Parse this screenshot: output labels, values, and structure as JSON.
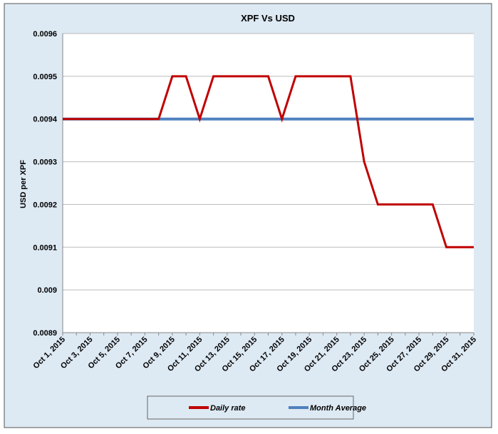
{
  "chart_data": {
    "type": "line",
    "title": "XPF Vs USD",
    "y_label": "USD per XPF",
    "categories": [
      "Oct 1, 2015",
      null,
      "Oct 3, 2015",
      null,
      "Oct 5, 2015",
      null,
      "Oct 7, 2015",
      null,
      "Oct 9, 2015",
      null,
      "Oct 11, 2015",
      null,
      "Oct 13, 2015",
      null,
      "Oct 15, 2015",
      null,
      "Oct 17, 2015",
      null,
      "Oct 19, 2015",
      null,
      "Oct 21, 2015",
      null,
      "Oct 23, 2015",
      null,
      "Oct 25, 2015",
      null,
      "Oct 27, 2015",
      null,
      "Oct 29, 2015",
      null,
      "Oct 31, 2015"
    ],
    "series": [
      {
        "name": "Month Average",
        "color": "#4f81bd",
        "values": [
          0.0094,
          0.0094,
          0.0094,
          0.0094,
          0.0094,
          0.0094,
          0.0094,
          0.0094,
          0.0094,
          0.0094,
          0.0094,
          0.0094,
          0.0094,
          0.0094,
          0.0094,
          0.0094,
          0.0094,
          0.0094,
          0.0094,
          0.0094,
          0.0094,
          0.0094,
          0.0094,
          0.0094,
          0.0094,
          0.0094,
          0.0094,
          0.0094,
          0.0094,
          0.0094,
          0.0094
        ]
      },
      {
        "name": "Daily rate",
        "color": "#c00000",
        "values": [
          0.0094,
          0.0094,
          0.0094,
          0.0094,
          0.0094,
          0.0094,
          0.0094,
          0.0094,
          0.0095,
          0.0095,
          0.0094,
          0.0095,
          0.0095,
          0.0095,
          0.0095,
          0.0095,
          0.0094,
          0.0095,
          0.0095,
          0.0095,
          0.0095,
          0.0095,
          0.0093,
          0.0092,
          0.0092,
          0.0092,
          0.0092,
          0.0092,
          0.0091,
          0.0091,
          0.0091
        ]
      }
    ],
    "legend_order": [
      "Daily rate",
      "Month Average"
    ],
    "ylim": [
      0.0089,
      0.0096
    ],
    "yticks": [
      0.0089,
      0.009,
      0.0091,
      0.0092,
      0.0093,
      0.0094,
      0.0095,
      0.0096
    ],
    "grid": true,
    "legend": "bottom"
  }
}
